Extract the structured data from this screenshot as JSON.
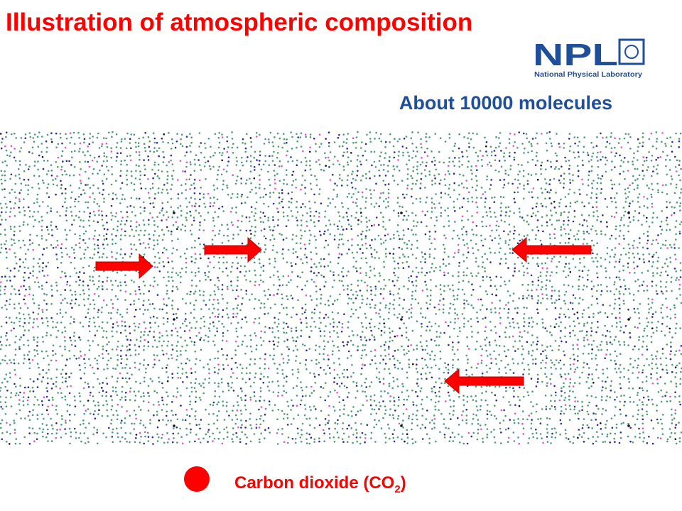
{
  "header": {
    "title": "Illustration of atmospheric composition",
    "logo": {
      "acronym": "NPL",
      "name": "National Physical Laboratory"
    }
  },
  "subtitle": "About 10000 molecules",
  "legend": {
    "text": "Carbon dioxide (CO",
    "subscript": "2",
    "closing": ")"
  }
}
